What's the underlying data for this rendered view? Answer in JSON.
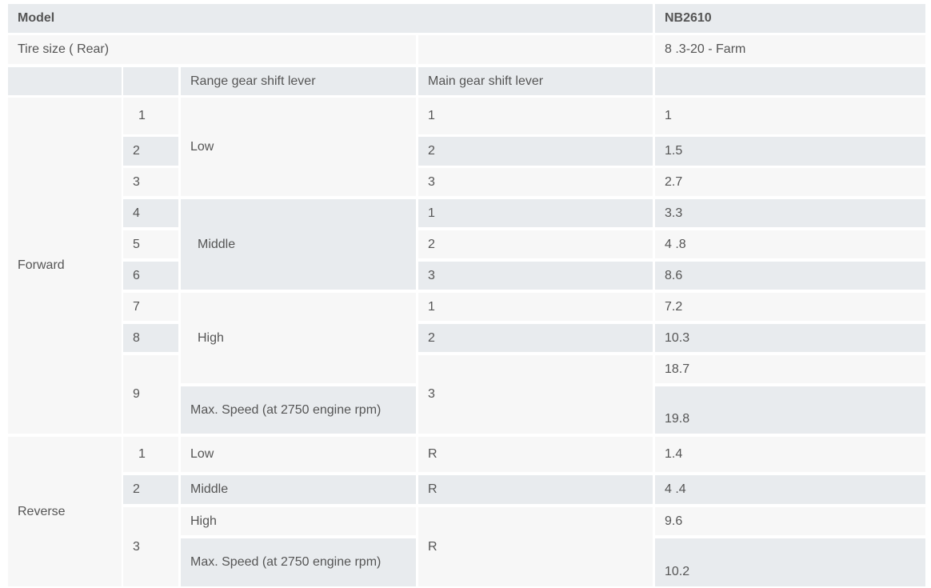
{
  "header": {
    "model_label": "Model",
    "model_value": "NB2610"
  },
  "tire": {
    "label": "Tire size ( Rear)",
    "value": "8 .3-20 - Farm"
  },
  "columns": {
    "range": "Range gear shift lever",
    "main": "Main gear shift lever"
  },
  "forward": {
    "label": "Forward",
    "numbers": [
      "1",
      "2",
      "3",
      "4",
      "5",
      "6",
      "7",
      "8",
      "9"
    ],
    "ranges": [
      "Low",
      "Middle",
      "High",
      "Max. Speed (at 2750 engine rpm)"
    ],
    "main": [
      "1",
      "2",
      "3",
      "1",
      "2",
      "3",
      "1",
      "2",
      "3"
    ],
    "values": [
      "1",
      "1.5",
      "2.7",
      "3.3",
      "4 .8",
      "8.6",
      "7.2",
      "10.3",
      "18.7",
      "19.8"
    ]
  },
  "reverse": {
    "label": "Reverse",
    "numbers": [
      "1",
      "2",
      "3"
    ],
    "ranges": [
      "Low",
      "Middle",
      "High",
      "Max. Speed (at 2750 engine rpm)"
    ],
    "main": [
      "R",
      "R",
      "R"
    ],
    "values": [
      "1.4",
      "4 .4",
      "9.6",
      "10.2"
    ]
  },
  "colors": {
    "row_light": "#f7f7f7",
    "row_shaded": "#e8ebee",
    "text": "#555555"
  }
}
